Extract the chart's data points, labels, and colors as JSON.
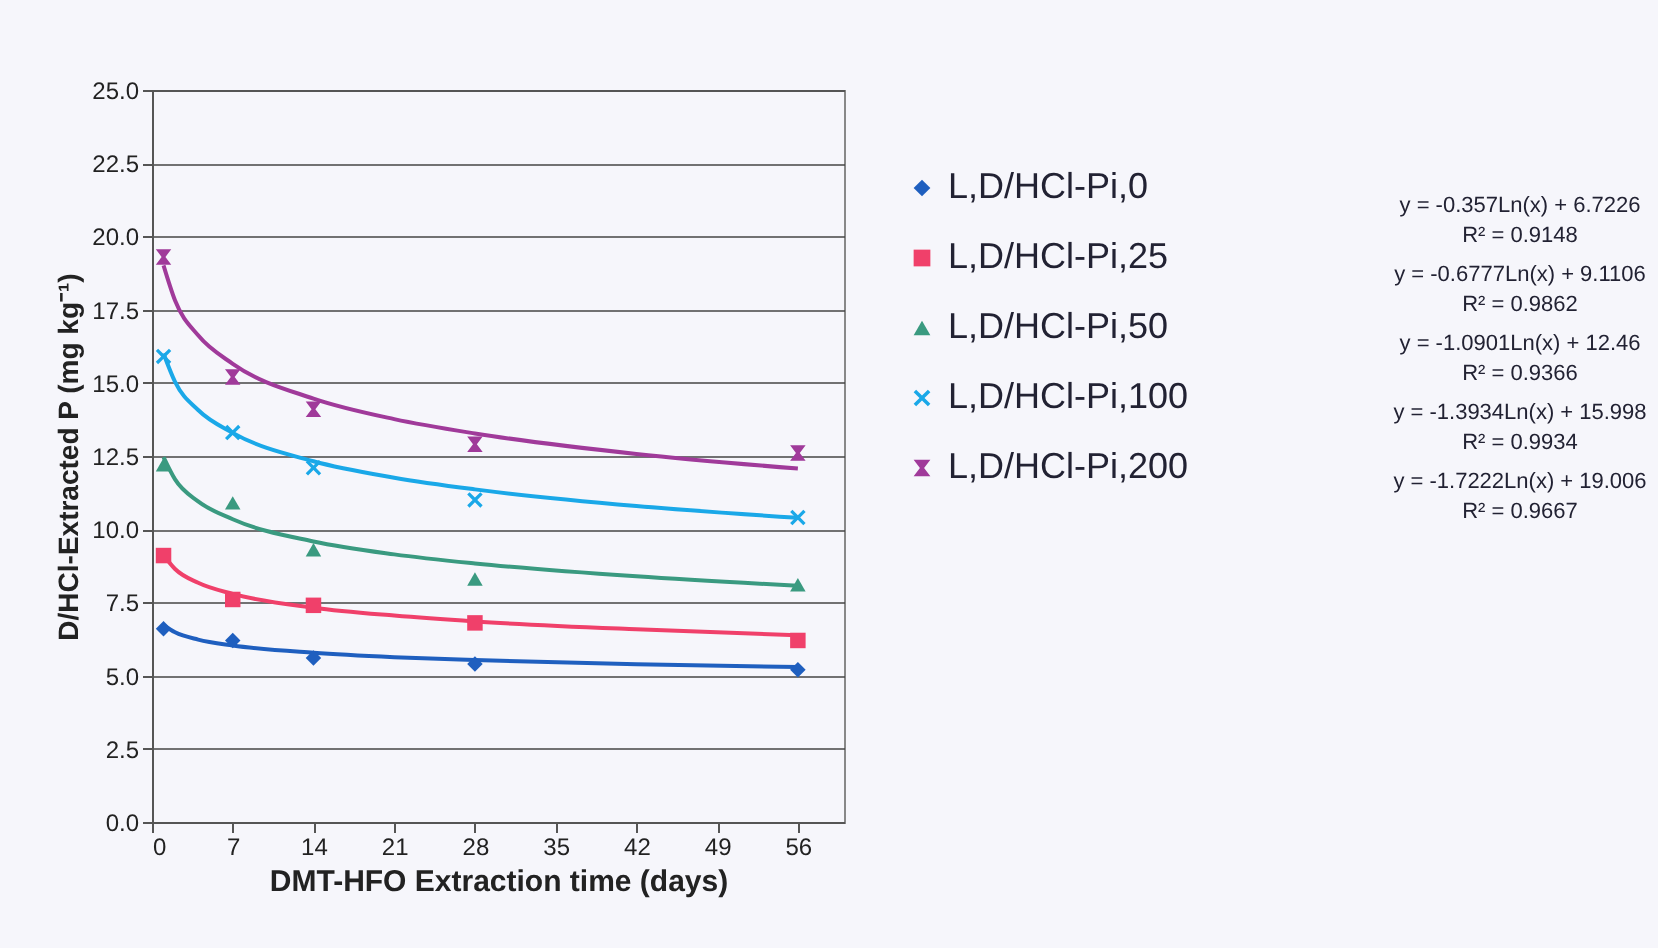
{
  "chart_data": {
    "type": "scatter",
    "xlabel": "DMT-HFO Extraction time (days)",
    "ylabel": "D/HCl-Extracted P (mg kg⁻¹)",
    "xlim": [
      0,
      60
    ],
    "xticks": [
      0,
      7,
      14,
      21,
      28,
      35,
      42,
      49,
      56
    ],
    "ylim": [
      0,
      25
    ],
    "yticks": [
      {
        "value": 0,
        "label": "0.0"
      },
      {
        "value": 2.5,
        "label": "2.5"
      },
      {
        "value": 5,
        "label": "5.0"
      },
      {
        "value": 7.5,
        "label": "7.5"
      },
      {
        "value": 10,
        "label": "10.0"
      },
      {
        "value": 12.5,
        "label": "12.5"
      },
      {
        "value": 15,
        "label": "15.0"
      },
      {
        "value": 17.5,
        "label": "17.5"
      },
      {
        "value": 20,
        "label": "20.0"
      },
      {
        "value": 22.5,
        "label": "22.5"
      },
      {
        "value": 25,
        "label": "25.0"
      }
    ],
    "grid": "y",
    "legend": "right",
    "series": [
      {
        "type": "line",
        "marker": "none",
        "color": "#1f5fbf",
        "x": [
          1,
          2,
          4,
          7,
          14,
          21,
          28,
          42,
          56
        ],
        "values": [
          6.72,
          6.48,
          6.23,
          6.03,
          5.78,
          5.63,
          5.53,
          5.39,
          5.29
        ]
      },
      {
        "type": "line",
        "marker": "none",
        "color": "#f0406a",
        "x": [
          1,
          2,
          4,
          7,
          14,
          21,
          28,
          42,
          56
        ],
        "values": [
          9.11,
          8.64,
          8.17,
          7.79,
          7.32,
          7.05,
          6.85,
          6.58,
          6.38
        ]
      },
      {
        "type": "line",
        "marker": "none",
        "color": "#3a9a80",
        "x": [
          1,
          2,
          4,
          7,
          14,
          21,
          28,
          42,
          56
        ],
        "values": [
          12.46,
          11.7,
          10.95,
          10.34,
          9.58,
          9.14,
          8.83,
          8.39,
          8.07
        ]
      },
      {
        "type": "line",
        "marker": "none",
        "color": "#1aa8e8",
        "x": [
          1,
          2,
          4,
          7,
          14,
          21,
          28,
          42,
          56
        ],
        "values": [
          16.0,
          15.03,
          14.07,
          13.29,
          12.32,
          11.76,
          11.36,
          10.79,
          10.39
        ]
      },
      {
        "type": "line",
        "marker": "none",
        "color": "#a03a9a",
        "x": [
          1,
          2,
          4,
          7,
          14,
          21,
          28,
          42,
          56
        ],
        "values": [
          19.01,
          17.81,
          16.62,
          15.65,
          14.46,
          13.76,
          13.27,
          12.57,
          12.07
        ]
      },
      {
        "type": "scatter",
        "name": "L,D/HCl-Pi,0",
        "marker": "diamond",
        "color": "#1f5fbf",
        "x": [
          1,
          7,
          14,
          28,
          56
        ],
        "values": [
          6.6,
          6.2,
          5.6,
          5.4,
          5.2
        ]
      },
      {
        "type": "scatter",
        "name": "L,D/HCl-Pi,25",
        "marker": "square",
        "color": "#f0406a",
        "x": [
          1,
          7,
          14,
          28,
          56
        ],
        "values": [
          9.1,
          7.6,
          7.4,
          6.8,
          6.2
        ]
      },
      {
        "type": "scatter",
        "name": "L,D/HCl-Pi,50",
        "marker": "triangle",
        "color": "#3a9a80",
        "x": [
          1,
          7,
          14,
          28,
          56
        ],
        "values": [
          12.2,
          10.9,
          9.3,
          8.3,
          8.1
        ]
      },
      {
        "type": "scatter",
        "name": "L,D/HCl-Pi,100",
        "marker": "cross",
        "color": "#1aa8e8",
        "x": [
          1,
          7,
          14,
          28,
          56
        ],
        "values": [
          15.9,
          13.3,
          12.1,
          11.0,
          10.4
        ]
      },
      {
        "type": "scatter",
        "name": "L,D/HCl-Pi,200",
        "marker": "star",
        "color": "#a03a9a",
        "x": [
          1,
          7,
          14,
          28,
          56
        ],
        "values": [
          19.3,
          15.2,
          14.1,
          12.9,
          12.6
        ]
      }
    ],
    "annotations": [
      "y = -0.357Ln(x) + 6.7226",
      "R² = 0.9148",
      "y = -0.6777Ln(x) + 9.1106",
      "R² = 0.9862",
      "y = -1.0901Ln(x) + 12.46",
      "R² = 0.9366",
      "y = -1.3934Ln(x) + 15.998",
      "R² = 0.9934",
      "y = -1.7222Ln(x) + 19.006",
      "R² = 0.9667"
    ]
  }
}
